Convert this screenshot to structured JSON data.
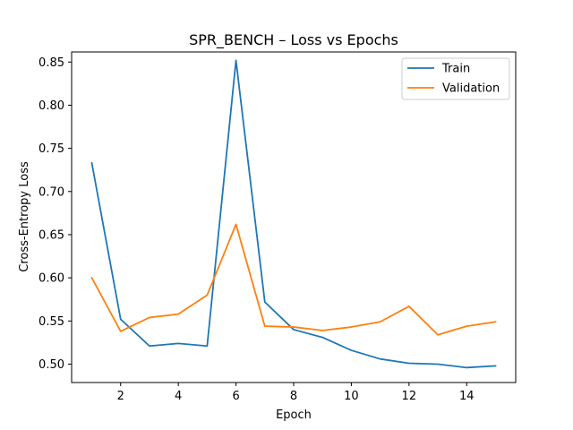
{
  "chart_data": {
    "type": "line",
    "title": "SPR_BENCH – Loss vs Epochs",
    "xlabel": "Epoch",
    "ylabel": "Cross-Entropy Loss",
    "xlim": [
      0.3,
      15.7
    ],
    "ylim": [
      0.4787,
      0.8617
    ],
    "x_ticks": [
      2,
      4,
      6,
      8,
      10,
      12,
      14
    ],
    "y_ticks": [
      0.5,
      0.55,
      0.6,
      0.65,
      0.7,
      0.75,
      0.8,
      0.85
    ],
    "grid": false,
    "legend_position": "top-right",
    "x": [
      1,
      2,
      3,
      4,
      5,
      6,
      7,
      8,
      9,
      10,
      11,
      12,
      13,
      14,
      15
    ],
    "series": [
      {
        "name": "Train",
        "color": "#1f77b4",
        "values": [
          0.733,
          0.552,
          0.521,
          0.524,
          0.521,
          0.852,
          0.572,
          0.54,
          0.531,
          0.516,
          0.506,
          0.501,
          0.5,
          0.496,
          0.498
        ]
      },
      {
        "name": "Validation",
        "color": "#ff7f0e",
        "values": [
          0.6,
          0.538,
          0.554,
          0.558,
          0.58,
          0.662,
          0.544,
          0.543,
          0.539,
          0.543,
          0.549,
          0.567,
          0.534,
          0.544,
          0.549
        ]
      }
    ]
  }
}
